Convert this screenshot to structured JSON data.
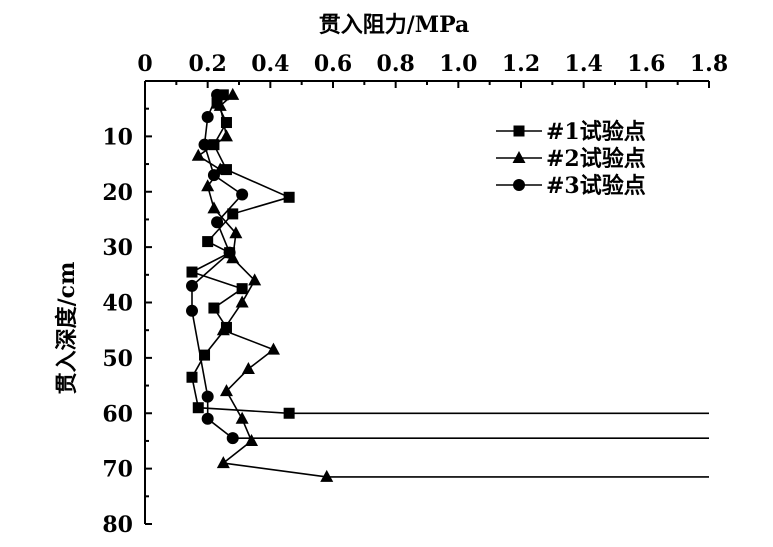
{
  "chart_data": {
    "type": "line",
    "xlabel": "贯入阻力/MPa",
    "ylabel": "贯入深度/cm",
    "xlim": [
      0,
      1.8
    ],
    "ylim": [
      0,
      80
    ],
    "x_axis_position": "top",
    "y_axis_inverted": true,
    "grid": false,
    "legend_position": "top-right",
    "x_ticks": [
      "0",
      "0.2",
      "0.4",
      "0.6",
      "0.8",
      "1.0",
      "1.2",
      "1.4",
      "1.6",
      "1.8"
    ],
    "y_ticks": [
      "10",
      "20",
      "30",
      "40",
      "50",
      "60",
      "70",
      "80"
    ],
    "series": [
      {
        "name": "#1试验点",
        "marker": "square",
        "points": [
          {
            "x": 0.25,
            "y": 2.5
          },
          {
            "x": 0.23,
            "y": 4
          },
          {
            "x": 0.26,
            "y": 7.5
          },
          {
            "x": 0.22,
            "y": 11.5
          },
          {
            "x": 0.26,
            "y": 16
          },
          {
            "x": 0.46,
            "y": 21
          },
          {
            "x": 0.28,
            "y": 24
          },
          {
            "x": 0.2,
            "y": 29
          },
          {
            "x": 0.27,
            "y": 31
          },
          {
            "x": 0.15,
            "y": 34.5
          },
          {
            "x": 0.31,
            "y": 37.5
          },
          {
            "x": 0.22,
            "y": 41
          },
          {
            "x": 0.26,
            "y": 44.5
          },
          {
            "x": 0.19,
            "y": 49.5
          },
          {
            "x": 0.15,
            "y": 53.5
          },
          {
            "x": 0.17,
            "y": 59
          },
          {
            "x": 0.46,
            "y": 60
          },
          {
            "x": 1.8,
            "y": 60
          }
        ]
      },
      {
        "name": "#2试验点",
        "marker": "triangle",
        "points": [
          {
            "x": 0.28,
            "y": 2.5
          },
          {
            "x": 0.24,
            "y": 4.5
          },
          {
            "x": 0.26,
            "y": 10
          },
          {
            "x": 0.17,
            "y": 13.5
          },
          {
            "x": 0.24,
            "y": 16
          },
          {
            "x": 0.2,
            "y": 19
          },
          {
            "x": 0.22,
            "y": 23
          },
          {
            "x": 0.29,
            "y": 27.5
          },
          {
            "x": 0.28,
            "y": 32
          },
          {
            "x": 0.35,
            "y": 36
          },
          {
            "x": 0.31,
            "y": 40
          },
          {
            "x": 0.25,
            "y": 45
          },
          {
            "x": 0.41,
            "y": 48.5
          },
          {
            "x": 0.33,
            "y": 52
          },
          {
            "x": 0.26,
            "y": 56
          },
          {
            "x": 0.31,
            "y": 61
          },
          {
            "x": 0.34,
            "y": 65
          },
          {
            "x": 0.25,
            "y": 69
          },
          {
            "x": 0.58,
            "y": 71.5
          },
          {
            "x": 1.8,
            "y": 71.5
          }
        ]
      },
      {
        "name": "#3试验点",
        "marker": "circle",
        "points": [
          {
            "x": 0.23,
            "y": 2.5
          },
          {
            "x": 0.2,
            "y": 6.5
          },
          {
            "x": 0.19,
            "y": 11.5
          },
          {
            "x": 0.22,
            "y": 17
          },
          {
            "x": 0.31,
            "y": 20.5
          },
          {
            "x": 0.23,
            "y": 25.5
          },
          {
            "x": 0.27,
            "y": 31
          },
          {
            "x": 0.15,
            "y": 37
          },
          {
            "x": 0.15,
            "y": 41.5
          },
          {
            "x": 0.2,
            "y": 57
          },
          {
            "x": 0.2,
            "y": 61
          },
          {
            "x": 0.28,
            "y": 64.5
          },
          {
            "x": 1.8,
            "y": 64.5
          }
        ]
      }
    ]
  }
}
